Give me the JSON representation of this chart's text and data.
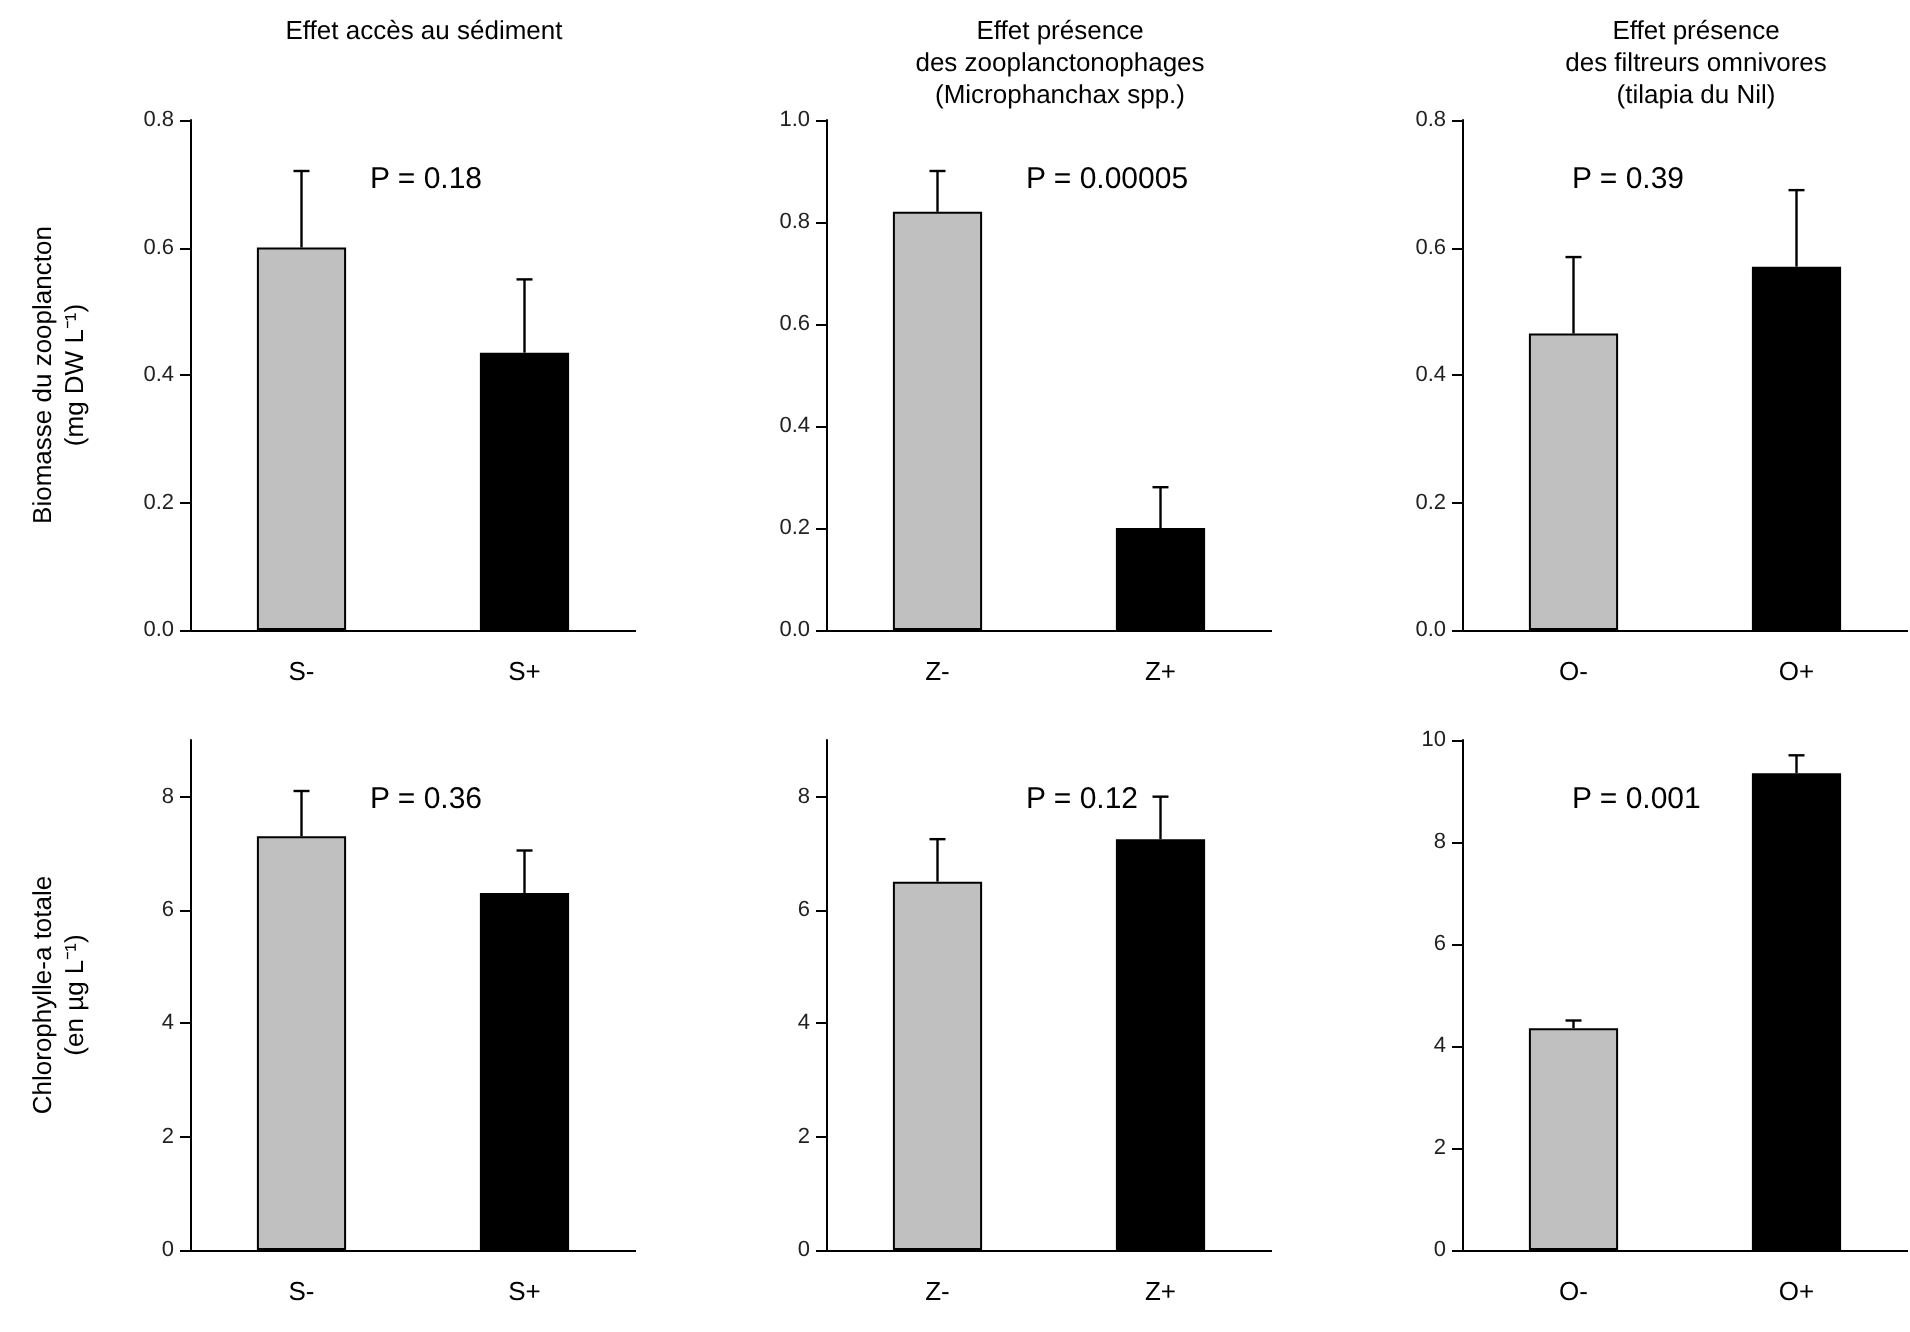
{
  "chart_data": [
    {
      "type": "bar",
      "title": "Effet accès au sédiment",
      "ylabel": "Biomasse du zooplancton\n(mg DW L⁻¹)",
      "categories": [
        "S-",
        "S+"
      ],
      "values": [
        0.6,
        0.435
      ],
      "errors": [
        0.12,
        0.115
      ],
      "colors": [
        "#c0c0c0",
        "#000000"
      ],
      "ylim": [
        0,
        0.8
      ],
      "yticks": [
        {
          "value": 0,
          "label": "0.0"
        },
        {
          "value": 0.2,
          "label": "0.2"
        },
        {
          "value": 0.4,
          "label": "0.4"
        },
        {
          "value": 0.6,
          "label": "0.6"
        },
        {
          "value": 0.8,
          "label": "0.8"
        }
      ],
      "annotations": [
        "P = 0.18"
      ]
    },
    {
      "type": "bar",
      "title": "Effet présence\ndes zooplanctonophages\n(Microphanchax spp.)",
      "categories": [
        "Z-",
        "Z+"
      ],
      "values": [
        0.82,
        0.2
      ],
      "errors": [
        0.08,
        0.08
      ],
      "colors": [
        "#c0c0c0",
        "#000000"
      ],
      "ylim": [
        0,
        1.0
      ],
      "yticks": [
        {
          "value": 0,
          "label": "0.0"
        },
        {
          "value": 0.2,
          "label": "0.2"
        },
        {
          "value": 0.4,
          "label": "0.4"
        },
        {
          "value": 0.6,
          "label": "0.6"
        },
        {
          "value": 0.8,
          "label": "0.8"
        },
        {
          "value": 1,
          "label": "1.0"
        }
      ],
      "annotations": [
        "P = 0.00005"
      ]
    },
    {
      "type": "bar",
      "title": "Effet présence\ndes filtreurs omnivores\n(tilapia du Nil)",
      "categories": [
        "O-",
        "O+"
      ],
      "values": [
        0.465,
        0.57
      ],
      "errors": [
        0.12,
        0.12
      ],
      "colors": [
        "#c0c0c0",
        "#000000"
      ],
      "ylim": [
        0,
        0.8
      ],
      "yticks": [
        {
          "value": 0,
          "label": "0.0"
        },
        {
          "value": 0.2,
          "label": "0.2"
        },
        {
          "value": 0.4,
          "label": "0.4"
        },
        {
          "value": 0.6,
          "label": "0.6"
        },
        {
          "value": 0.8,
          "label": "0.8"
        }
      ],
      "annotations": [
        "P = 0.39"
      ]
    },
    {
      "type": "bar",
      "ylabel": "Chlorophylle-a totale\n(en µg L⁻¹)",
      "categories": [
        "S-",
        "S+"
      ],
      "values": [
        7.3,
        6.3
      ],
      "errors": [
        0.8,
        0.75
      ],
      "colors": [
        "#c0c0c0",
        "#000000"
      ],
      "ylim": [
        0,
        9
      ],
      "yticks": [
        0,
        2,
        4,
        6,
        8
      ],
      "annotations": [
        "P = 0.36"
      ]
    },
    {
      "type": "bar",
      "categories": [
        "Z-",
        "Z+"
      ],
      "values": [
        6.5,
        7.25
      ],
      "errors": [
        0.75,
        0.75
      ],
      "colors": [
        "#c0c0c0",
        "#000000"
      ],
      "ylim": [
        0,
        9
      ],
      "yticks": [
        0,
        2,
        4,
        6,
        8
      ],
      "annotations": [
        "P = 0.12"
      ]
    },
    {
      "type": "bar",
      "categories": [
        "O-",
        "O+"
      ],
      "values": [
        4.35,
        9.35
      ],
      "errors": [
        0.15,
        0.35
      ],
      "colors": [
        "#c0c0c0",
        "#000000"
      ],
      "ylim": [
        0,
        10
      ],
      "yticks": [
        0,
        2,
        4,
        6,
        8,
        10
      ],
      "annotations": [
        "P = 0.001"
      ]
    }
  ]
}
